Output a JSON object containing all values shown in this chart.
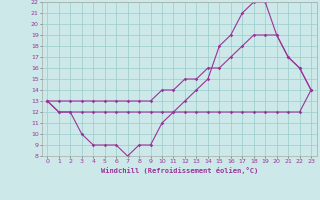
{
  "xlabel": "Windchill (Refroidissement éolien,°C)",
  "bg_color": "#cce8e8",
  "line_color": "#993399",
  "grid_color": "#99cccc",
  "xlim": [
    -0.5,
    23.5
  ],
  "ylim": [
    8,
    22
  ],
  "xticks": [
    0,
    1,
    2,
    3,
    4,
    5,
    6,
    7,
    8,
    9,
    10,
    11,
    12,
    13,
    14,
    15,
    16,
    17,
    18,
    19,
    20,
    21,
    22,
    23
  ],
  "yticks": [
    8,
    9,
    10,
    11,
    12,
    13,
    14,
    15,
    16,
    17,
    18,
    19,
    20,
    21,
    22
  ],
  "line1_x": [
    0,
    1,
    2,
    3,
    4,
    5,
    6,
    7,
    8,
    9,
    10,
    11,
    12,
    13,
    14,
    15,
    16,
    17,
    18,
    19,
    20,
    21,
    22,
    23
  ],
  "line1_y": [
    13,
    12,
    12,
    12,
    12,
    12,
    12,
    12,
    12,
    12,
    12,
    12,
    12,
    12,
    12,
    12,
    12,
    12,
    12,
    12,
    12,
    12,
    12,
    14
  ],
  "line2_x": [
    0,
    1,
    2,
    3,
    4,
    5,
    6,
    7,
    8,
    9,
    10,
    11,
    12,
    13,
    14,
    15,
    16,
    17,
    18,
    19,
    20,
    21,
    22,
    23
  ],
  "line2_y": [
    13,
    13,
    13,
    13,
    13,
    13,
    13,
    13,
    13,
    13,
    14,
    14,
    15,
    15,
    16,
    16,
    17,
    18,
    19,
    19,
    19,
    17,
    16,
    14
  ],
  "line3_x": [
    0,
    1,
    2,
    3,
    4,
    5,
    6,
    7,
    8,
    9,
    10,
    11,
    12,
    13,
    14,
    15,
    16,
    17,
    18,
    19,
    20,
    21,
    22,
    23
  ],
  "line3_y": [
    13,
    12,
    12,
    10,
    9,
    9,
    9,
    8,
    9,
    9,
    11,
    12,
    13,
    14,
    15,
    18,
    19,
    21,
    22,
    22,
    19,
    17,
    16,
    14
  ]
}
